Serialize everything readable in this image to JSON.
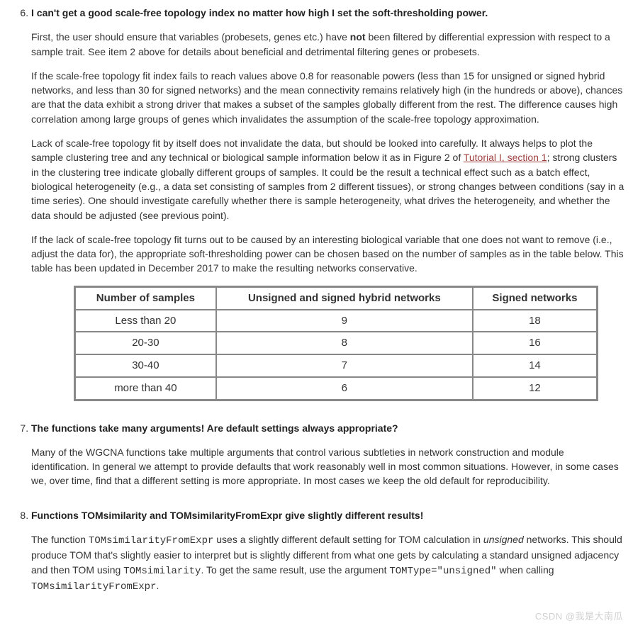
{
  "items": [
    {
      "num": "6",
      "title": "I can't get a good scale-free topology index no matter how high I set the soft-thresholding power.",
      "paras": [
        {
          "runs": [
            {
              "t": "First, the user should ensure that variables (probesets, genes etc.) have "
            },
            {
              "t": "not",
              "b": true
            },
            {
              "t": " been filtered by differential expression with respect to a sample trait. See item 2 above for details about beneficial and detrimental filtering genes or probesets."
            }
          ]
        },
        {
          "runs": [
            {
              "t": "If the scale-free topology fit index fails to reach values above 0.8 for reasonable powers (less than 15 for unsigned or signed hybrid networks, and less than 30 for signed networks) and the mean connectivity remains relatively high (in the hundreds or above), chances are that the data exhibit a strong driver that makes a subset of the samples globally different from the rest. The difference causes high correlation among large groups of genes which invalidates the assumption of the scale-free topology approximation."
            }
          ]
        },
        {
          "runs": [
            {
              "t": "Lack of scale-free topology fit by itself does not invalidate the data, but should be looked into carefully. It always helps to plot the sample clustering tree and any technical or biological sample information below it as in Figure 2 of "
            },
            {
              "t": "Tutorial I, section 1",
              "link": true
            },
            {
              "t": "; strong clusters in the clustering tree indicate globally different groups of samples. It could be the result a technical effect such as a batch effect, biological heterogeneity (e.g., a data set consisting of samples from 2 different tissues), or strong changes between conditions (say in a time series). One should investigate carefully whether there is sample heterogeneity, what drives the heterogeneity, and whether the data should be adjusted (see previous point)."
            }
          ]
        },
        {
          "runs": [
            {
              "t": "If the lack of scale-free topology fit turns out to be caused by an interesting biological variable that one does not want to remove (i.e., adjust the data for), the appropriate soft-thresholding power can be chosen based on the number of samples as in the table below. This table has been updated in December 2017 to make the resulting networks conservative."
            }
          ]
        }
      ],
      "table": {
        "headers": [
          "Number of samples",
          "Unsigned and signed hybrid networks",
          "Signed networks"
        ],
        "rows": [
          [
            "Less than 20",
            "9",
            "18"
          ],
          [
            "20-30",
            "8",
            "16"
          ],
          [
            "30-40",
            "7",
            "14"
          ],
          [
            "more than 40",
            "6",
            "12"
          ]
        ]
      }
    },
    {
      "num": "7",
      "title": "The functions take many arguments! Are default settings always appropriate?",
      "paras": [
        {
          "runs": [
            {
              "t": "Many of the WGCNA functions take multiple arguments that control various subtleties in network construction and module identification. In general we attempt to provide defaults that work reasonably well in most common situations. However, in some cases we, over time, find that a different setting is more appropriate. In most cases we keep the old default for reproducibility."
            }
          ]
        }
      ]
    },
    {
      "num": "8",
      "title": "Functions TOMsimilarity and TOMsimilarityFromExpr give slightly different results!",
      "paras": [
        {
          "runs": [
            {
              "t": "The function "
            },
            {
              "t": "TOMsimilarityFromExpr",
              "code": true
            },
            {
              "t": " uses a slightly different default setting for TOM calculation in "
            },
            {
              "t": "unsigned",
              "i": true
            },
            {
              "t": " networks. This should produce TOM that's slightly easier to interpret but is slightly different from what one gets by calculating a standard unsigned adjacency and then TOM using "
            },
            {
              "t": "TOMsimilarity",
              "code": true
            },
            {
              "t": ". To get the same result, use the argument "
            },
            {
              "t": "TOMType=\"unsigned\"",
              "code": true
            },
            {
              "t": " when calling "
            },
            {
              "t": "TOMsimilarityFromExpr",
              "code": true
            },
            {
              "t": "."
            }
          ]
        }
      ]
    }
  ],
  "watermark": "CSDN @我是大南瓜",
  "colors": {
    "text": "#333333",
    "link": "#a04040",
    "border": "#888888",
    "watermark": "#d0d0d0"
  }
}
